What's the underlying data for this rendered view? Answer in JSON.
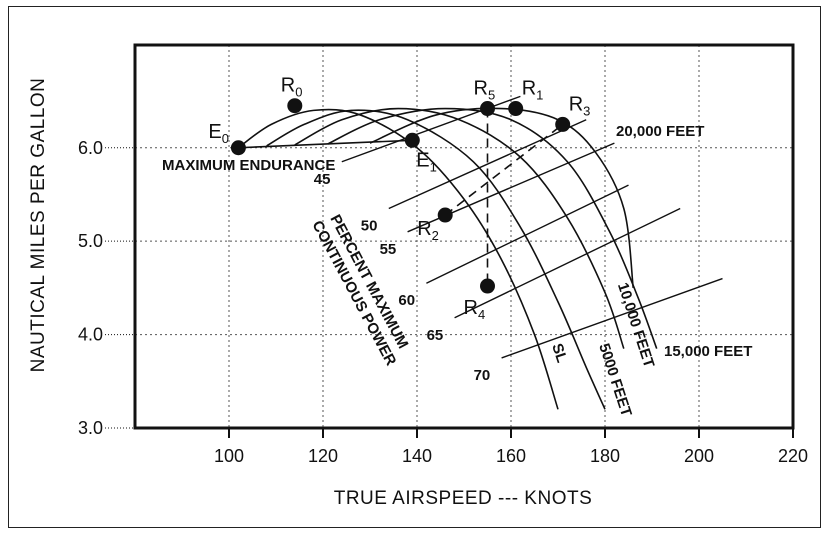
{
  "chart_data": {
    "type": "line",
    "xlabel": "TRUE AIRSPEED --- KNOTS",
    "ylabel": "NAUTICAL MILES PER GALLON",
    "xlim": [
      80,
      220
    ],
    "ylim": [
      3.0,
      7.1
    ],
    "x_ticks": [
      "100",
      "120",
      "140",
      "160",
      "180",
      "200",
      "220"
    ],
    "x_tick_values": [
      100,
      120,
      140,
      160,
      180,
      200,
      220
    ],
    "y_ticks": [
      "3.0",
      "4.0",
      "5.0",
      "6.0"
    ],
    "y_tick_values": [
      3.0,
      4.0,
      5.0,
      6.0
    ],
    "grid": true,
    "altitude_curves": [
      {
        "label": "SL",
        "points": [
          [
            102,
            6.0
          ],
          [
            109,
            6.25
          ],
          [
            118,
            6.4
          ],
          [
            128,
            6.35
          ],
          [
            140,
            6.0
          ],
          [
            150,
            5.45
          ],
          [
            158,
            4.8
          ],
          [
            165,
            4.0
          ],
          [
            170,
            3.2
          ]
        ]
      },
      {
        "label": "5000 FEET",
        "points": [
          [
            108,
            6.02
          ],
          [
            116,
            6.25
          ],
          [
            126,
            6.4
          ],
          [
            138,
            6.3
          ],
          [
            152,
            5.85
          ],
          [
            162,
            5.15
          ],
          [
            170,
            4.35
          ],
          [
            176,
            3.65
          ],
          [
            180,
            3.2
          ]
        ]
      },
      {
        "label": "10,000 FEET",
        "points": [
          [
            114,
            6.03
          ],
          [
            124,
            6.3
          ],
          [
            136,
            6.42
          ],
          [
            149,
            6.3
          ],
          [
            162,
            5.9
          ],
          [
            172,
            5.25
          ],
          [
            180,
            4.45
          ],
          [
            184,
            3.85
          ]
        ]
      },
      {
        "label": "15,000 FEET",
        "points": [
          [
            121,
            6.04
          ],
          [
            132,
            6.3
          ],
          [
            146,
            6.42
          ],
          [
            160,
            6.3
          ],
          [
            172,
            5.85
          ],
          [
            181,
            5.1
          ],
          [
            187,
            4.4
          ],
          [
            191,
            3.85
          ]
        ]
      },
      {
        "label": "20,000 FEET",
        "points": [
          [
            130,
            6.05
          ],
          [
            144,
            6.35
          ],
          [
            158,
            6.42
          ],
          [
            170,
            6.3
          ],
          [
            178,
            5.95
          ],
          [
            184,
            5.35
          ],
          [
            186,
            4.5
          ]
        ]
      }
    ],
    "power_lines": [
      {
        "label": "45",
        "points": [
          [
            124,
            5.85
          ],
          [
            162,
            6.55
          ]
        ]
      },
      {
        "label": "50",
        "points": [
          [
            134,
            5.35
          ],
          [
            176,
            6.3
          ]
        ]
      },
      {
        "label": "55",
        "points": [
          [
            138,
            5.1
          ],
          [
            182,
            6.05
          ]
        ]
      },
      {
        "label": "60",
        "points": [
          [
            142,
            4.55
          ],
          [
            185,
            5.6
          ]
        ]
      },
      {
        "label": "65",
        "points": [
          [
            148,
            4.18
          ],
          [
            196,
            5.35
          ]
        ]
      },
      {
        "label": "70",
        "points": [
          [
            158,
            3.75
          ],
          [
            205,
            4.6
          ]
        ]
      }
    ],
    "max_endurance_line": {
      "points": [
        [
          102,
          6.0
        ],
        [
          139,
          6.08
        ]
      ]
    },
    "dashed_lines": [
      {
        "points": [
          [
            146,
            5.28
          ],
          [
            171,
            6.25
          ]
        ]
      },
      {
        "points": [
          [
            155,
            6.42
          ],
          [
            155,
            4.52
          ]
        ]
      }
    ],
    "labeled_points": [
      {
        "name": "E",
        "sub": "0",
        "x": 102,
        "y": 6.0
      },
      {
        "name": "R",
        "sub": "0",
        "x": 114,
        "y": 6.45
      },
      {
        "name": "E",
        "sub": "1",
        "x": 139,
        "y": 6.08
      },
      {
        "name": "R",
        "sub": "5",
        "x": 155,
        "y": 6.42
      },
      {
        "name": "R",
        "sub": "1",
        "x": 161,
        "y": 6.42
      },
      {
        "name": "R",
        "sub": "3",
        "x": 171,
        "y": 6.25
      },
      {
        "name": "R",
        "sub": "2",
        "x": 146,
        "y": 5.28
      },
      {
        "name": "R",
        "sub": "4",
        "x": 155,
        "y": 4.52
      }
    ],
    "annotations": {
      "max_endurance": "MAXIMUM ENDURANCE",
      "percent_power": [
        "PERCENT MAXIMUM",
        "CONTINUOUS POWER"
      ]
    }
  }
}
